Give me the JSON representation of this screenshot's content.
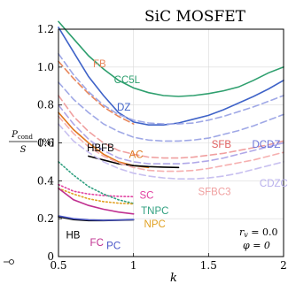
{
  "chart_data": {
    "type": "line",
    "title": "SiC MOSFET",
    "xlabel": "k",
    "ylabel": {
      "frac_num": "P_cond",
      "frac_den": "S",
      "unit": "[%]"
    },
    "xlim": [
      0.5,
      2.0
    ],
    "ylim": [
      0.0,
      1.2
    ],
    "xticks": [
      0.5,
      1.0,
      1.5,
      2.0
    ],
    "xtick_labels": [
      "0.5",
      "1",
      "1.5",
      "2"
    ],
    "yticks": [
      0.0,
      0.2,
      0.4,
      0.6,
      0.8,
      1.0,
      1.2
    ],
    "ytick_labels": [
      "0",
      "0.2",
      "0.4",
      "0.6",
      "0.8",
      "1.0",
      "1.2"
    ],
    "grid": true,
    "annotation_lines": [
      "r_v = 0.0",
      "φ = 0"
    ],
    "series": [
      {
        "name": "CC5L",
        "color": "#2e9f6e",
        "dash": "solid",
        "x": [
          0.5,
          0.6,
          0.7,
          0.8,
          0.9,
          1.0,
          1.1,
          1.2,
          1.3,
          1.4,
          1.5,
          1.6,
          1.7,
          1.8,
          1.9,
          2.0
        ],
        "y": [
          1.24,
          1.15,
          1.06,
          0.99,
          0.93,
          0.89,
          0.865,
          0.85,
          0.845,
          0.85,
          0.86,
          0.875,
          0.895,
          0.93,
          0.97,
          1.0
        ]
      },
      {
        "name": "DZ",
        "color": "#3f63c8",
        "dash": "solid",
        "x": [
          0.5,
          0.6,
          0.7,
          0.8,
          0.9,
          1.0,
          1.1,
          1.2,
          1.3,
          1.4,
          1.5,
          1.6,
          1.7,
          1.8,
          1.9,
          2.0
        ],
        "y": [
          1.21,
          1.08,
          0.95,
          0.85,
          0.76,
          0.71,
          0.695,
          0.695,
          0.705,
          0.725,
          0.745,
          0.775,
          0.81,
          0.845,
          0.885,
          0.93
        ]
      },
      {
        "name": "FB",
        "color": "#e8875c",
        "dash": "dashed",
        "x": [
          0.5,
          0.6,
          0.7,
          0.8,
          0.9,
          1.0
        ],
        "y": [
          1.03,
          0.94,
          0.86,
          0.79,
          0.74,
          0.7
        ]
      },
      {
        "name": "",
        "color": "#9fa8e6",
        "dash": "dashed",
        "x": [
          0.5,
          0.6,
          0.7,
          0.8,
          0.9,
          1.0,
          1.1,
          1.2,
          1.3,
          1.4,
          1.5,
          1.6,
          1.7,
          1.8,
          1.9,
          2.0
        ],
        "y": [
          1.07,
          0.96,
          0.87,
          0.8,
          0.75,
          0.72,
          0.705,
          0.7,
          0.7,
          0.705,
          0.72,
          0.74,
          0.765,
          0.79,
          0.82,
          0.85
        ]
      },
      {
        "name": "",
        "color": "#9fa8e6",
        "dash": "dashed",
        "x": [
          0.5,
          0.6,
          0.7,
          0.8,
          0.9,
          1.0,
          1.1,
          1.2,
          1.3,
          1.4,
          1.5,
          1.6,
          1.7,
          1.8,
          1.9,
          2.0
        ],
        "y": [
          0.92,
          0.83,
          0.76,
          0.7,
          0.66,
          0.63,
          0.615,
          0.61,
          0.61,
          0.615,
          0.625,
          0.645,
          0.665,
          0.69,
          0.72,
          0.75
        ]
      },
      {
        "name": "AC",
        "color": "#e07820",
        "dash": "solid",
        "x": [
          0.5,
          0.6,
          0.7,
          0.8,
          0.9,
          1.0,
          1.1
        ],
        "y": [
          0.76,
          0.67,
          0.6,
          0.54,
          0.5,
          0.48,
          0.47
        ]
      },
      {
        "name": "HBFB",
        "color": "#000000",
        "dash": "solid",
        "x": [
          0.7,
          0.8,
          0.9,
          1.0,
          1.1,
          1.2,
          1.3
        ],
        "y": [
          0.53,
          0.51,
          0.49,
          0.48,
          0.475,
          0.472,
          0.47
        ]
      },
      {
        "name": "SFB",
        "color": "#f0a0a0",
        "dash": "dashed",
        "x": [
          0.5,
          0.6,
          0.7,
          0.8,
          0.9,
          1.0,
          1.1,
          1.2,
          1.3,
          1.4,
          1.5,
          1.6,
          1.7,
          1.8,
          1.9,
          2.0
        ],
        "y": [
          0.85,
          0.74,
          0.66,
          0.6,
          0.56,
          0.54,
          0.525,
          0.52,
          0.52,
          0.525,
          0.535,
          0.545,
          0.56,
          0.575,
          0.59,
          0.61
        ]
      },
      {
        "name": "DCDZ",
        "color": "#b0a8e8",
        "dash": "dashed",
        "x": [
          0.5,
          0.6,
          0.7,
          0.8,
          0.9,
          1.0,
          1.1,
          1.2,
          1.3,
          1.4,
          1.5,
          1.6,
          1.7,
          1.8,
          1.9,
          2.0
        ],
        "y": [
          0.8,
          0.7,
          0.62,
          0.56,
          0.52,
          0.5,
          0.49,
          0.49,
          0.49,
          0.495,
          0.505,
          0.52,
          0.54,
          0.56,
          0.58,
          0.6
        ]
      },
      {
        "name": "SFBC3",
        "color": "#f6b0b0",
        "dash": "dashed",
        "x": [
          0.5,
          0.6,
          0.7,
          0.8,
          0.9,
          1.0,
          1.1,
          1.2,
          1.3,
          1.4,
          1.5,
          1.6,
          1.7,
          1.8,
          1.9,
          2.0
        ],
        "y": [
          0.74,
          0.65,
          0.58,
          0.53,
          0.495,
          0.47,
          0.455,
          0.45,
          0.45,
          0.455,
          0.465,
          0.48,
          0.495,
          0.51,
          0.53,
          0.55
        ]
      },
      {
        "name": "CDZC3",
        "color": "#c8c0f0",
        "dash": "dashed",
        "x": [
          0.5,
          0.6,
          0.7,
          0.8,
          0.9,
          1.0,
          1.1,
          1.2,
          1.3,
          1.4,
          1.5,
          1.6,
          1.7,
          1.8,
          1.9,
          2.0
        ],
        "y": [
          0.7,
          0.61,
          0.55,
          0.5,
          0.465,
          0.44,
          0.425,
          0.415,
          0.41,
          0.41,
          0.415,
          0.425,
          0.44,
          0.46,
          0.48,
          0.5
        ]
      },
      {
        "name": "SC",
        "color": "#e040a0",
        "dash": "dotted",
        "x": [
          0.5,
          0.6,
          0.7,
          0.8,
          0.9,
          1.0
        ],
        "y": [
          0.38,
          0.345,
          0.33,
          0.322,
          0.318,
          0.316
        ]
      },
      {
        "name": "TNPC",
        "color": "#30a080",
        "dash": "dotted",
        "x": [
          0.5,
          0.6,
          0.7,
          0.8,
          0.9,
          1.0
        ],
        "y": [
          0.5,
          0.43,
          0.37,
          0.33,
          0.3,
          0.28
        ]
      },
      {
        "name": "NPC",
        "color": "#e0a020",
        "dash": "dotted",
        "x": [
          0.5,
          0.6,
          0.7,
          0.8,
          0.9,
          1.0
        ],
        "y": [
          0.36,
          0.33,
          0.305,
          0.29,
          0.282,
          0.278
        ]
      },
      {
        "name": "HB",
        "color": "#000000",
        "dash": "solid",
        "x": [
          0.5,
          0.6,
          0.7,
          0.8,
          0.9,
          1.0
        ],
        "y": [
          0.21,
          0.195,
          0.19,
          0.19,
          0.192,
          0.194
        ]
      },
      {
        "name": "FC",
        "color": "#c03090",
        "dash": "solid",
        "x": [
          0.5,
          0.6,
          0.7,
          0.8,
          0.9,
          1.0
        ],
        "y": [
          0.36,
          0.3,
          0.27,
          0.25,
          0.235,
          0.225
        ]
      },
      {
        "name": "PC",
        "color": "#4a56c8",
        "dash": "solid",
        "x": [
          0.5,
          0.6,
          0.7,
          0.8,
          0.9,
          1.0
        ],
        "y": [
          0.215,
          0.2,
          0.194,
          0.192,
          0.193,
          0.195
        ]
      }
    ],
    "labels": [
      {
        "text": "FB",
        "color": "#e8875c",
        "x": 0.73,
        "y": 1.0
      },
      {
        "text": "CC5L",
        "color": "#2e9f6e",
        "x": 0.87,
        "y": 0.915
      },
      {
        "text": "DZ",
        "color": "#3f63c8",
        "x": 0.89,
        "y": 0.77
      },
      {
        "text": "HBFB",
        "color": "#000000",
        "x": 0.69,
        "y": 0.555
      },
      {
        "text": "AC",
        "color": "#e07820",
        "x": 0.97,
        "y": 0.52
      },
      {
        "text": "SFB",
        "color": "#e06060",
        "x": 1.52,
        "y": 0.575
      },
      {
        "text": "DCDZ",
        "color": "#6a72d8",
        "x": 1.79,
        "y": 0.575
      },
      {
        "text": "SFBC3",
        "color": "#f0a0a0",
        "x": 1.43,
        "y": 0.325
      },
      {
        "text": "CDZC3",
        "color": "#b8b0ec",
        "x": 1.84,
        "y": 0.37
      },
      {
        "text": "SC",
        "color": "#e040a0",
        "x": 1.04,
        "y": 0.305
      },
      {
        "text": "TNPC",
        "color": "#30a080",
        "x": 1.05,
        "y": 0.225
      },
      {
        "text": "NPC",
        "color": "#e0a020",
        "x": 1.07,
        "y": 0.155
      },
      {
        "text": "HB",
        "color": "#000000",
        "x": 0.55,
        "y": 0.095
      },
      {
        "text": "FC",
        "color": "#c03090",
        "x": 0.71,
        "y": 0.055
      },
      {
        "text": "PC",
        "color": "#4a56c8",
        "x": 0.82,
        "y": 0.04
      }
    ]
  }
}
